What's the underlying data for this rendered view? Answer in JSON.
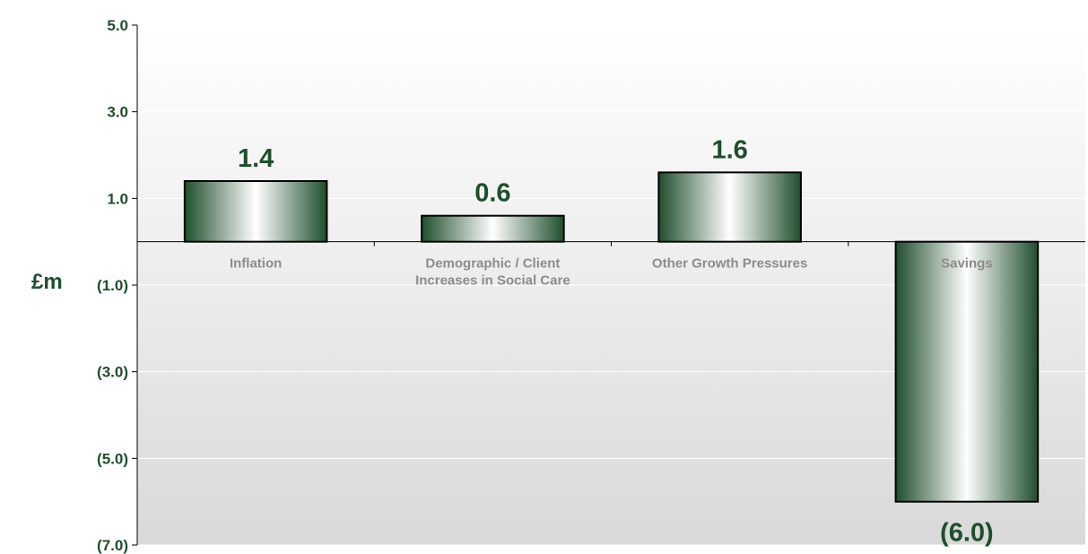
{
  "chart_data": {
    "type": "bar",
    "categories": [
      "Inflation",
      "Demographic / Client Increases in Social Care",
      "Other Growth Pressures",
      "Savings"
    ],
    "category_lines": [
      [
        "Inflation"
      ],
      [
        "Demographic / Client",
        "Increases in Social Care"
      ],
      [
        "Other Growth Pressures"
      ],
      [
        "Savings"
      ]
    ],
    "values": [
      1.4,
      0.6,
      1.6,
      -6.0
    ],
    "data_labels": [
      "1.4",
      "0.6",
      "1.6",
      "(6.0)"
    ],
    "title": "",
    "xlabel": "",
    "ylabel": "£m",
    "ylim": [
      -7.0,
      5.0
    ],
    "yticks": [
      5.0,
      3.0,
      1.0,
      -1.0,
      -3.0,
      -5.0,
      -7.0
    ],
    "ytick_labels": [
      "5.0",
      "3.0",
      "1.0",
      "(1.0)",
      "(3.0)",
      "(5.0)",
      "(7.0)"
    ],
    "grid": true,
    "legend": "none",
    "colors": {
      "bar_dark": "#1f4e2c",
      "bar_light": "#ffffff",
      "text": "#1f4e2c",
      "category_text": "#8c8c8c",
      "grid": "#ffffff"
    }
  }
}
